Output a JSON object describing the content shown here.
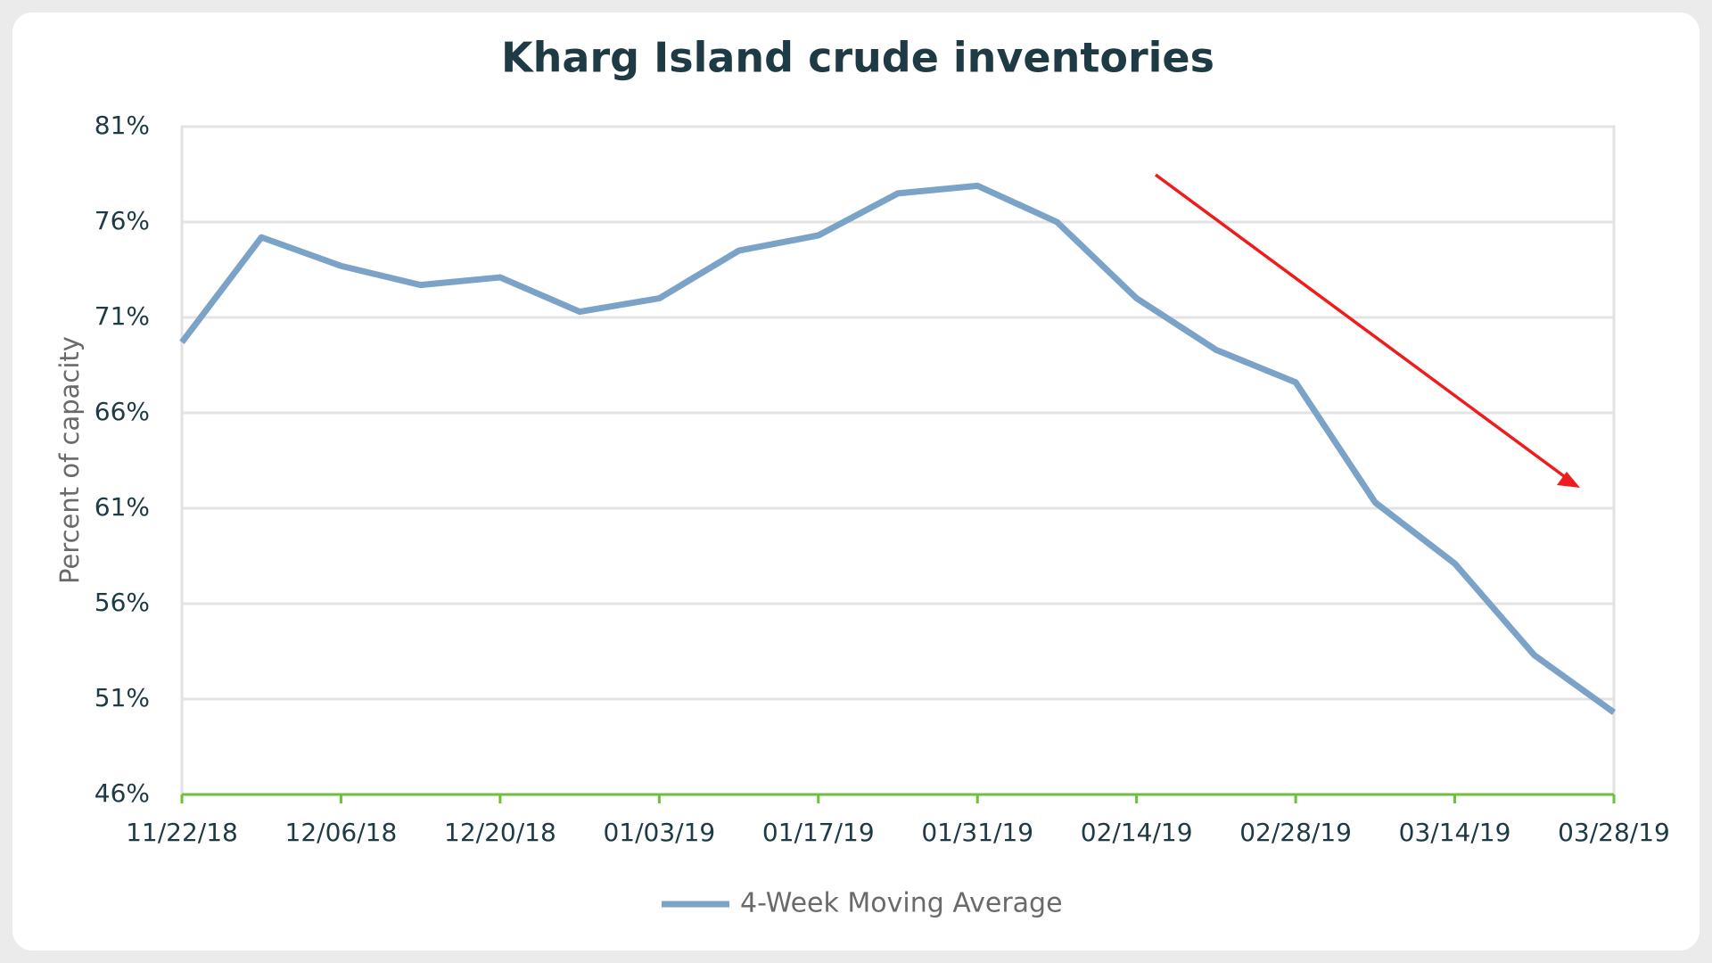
{
  "chart_data": {
    "type": "line",
    "title": "Kharg Island crude inventories",
    "y_label": "Percent of capacity",
    "categories": [
      "11/22/18",
      null,
      "12/06/18",
      null,
      "12/20/18",
      null,
      "01/03/19",
      null,
      "01/17/19",
      null,
      "01/31/19",
      null,
      "02/14/19",
      null,
      "02/28/19",
      null,
      "03/14/19",
      null,
      "03/28/19"
    ],
    "series": [
      {
        "name": "4-Week Moving Average",
        "color": "#7ba2c7",
        "values": [
          69.7,
          75.2,
          73.7,
          72.7,
          73.1,
          71.3,
          72.0,
          74.5,
          75.3,
          77.5,
          77.9,
          76.0,
          72.0,
          69.3,
          67.6,
          61.3,
          58.1,
          53.3,
          50.3
        ]
      }
    ],
    "ylim": [
      46,
      81
    ],
    "yticks": [
      {
        "value": 46,
        "label": "46%"
      },
      {
        "value": 51,
        "label": "51%"
      },
      {
        "value": 56,
        "label": "56%"
      },
      {
        "value": 61,
        "label": "61%"
      },
      {
        "value": 66,
        "label": "66%"
      },
      {
        "value": 71,
        "label": "71%"
      },
      {
        "value": 76,
        "label": "76%"
      },
      {
        "value": 81,
        "label": "81%"
      }
    ],
    "grid": true,
    "legend": "bottom"
  }
}
